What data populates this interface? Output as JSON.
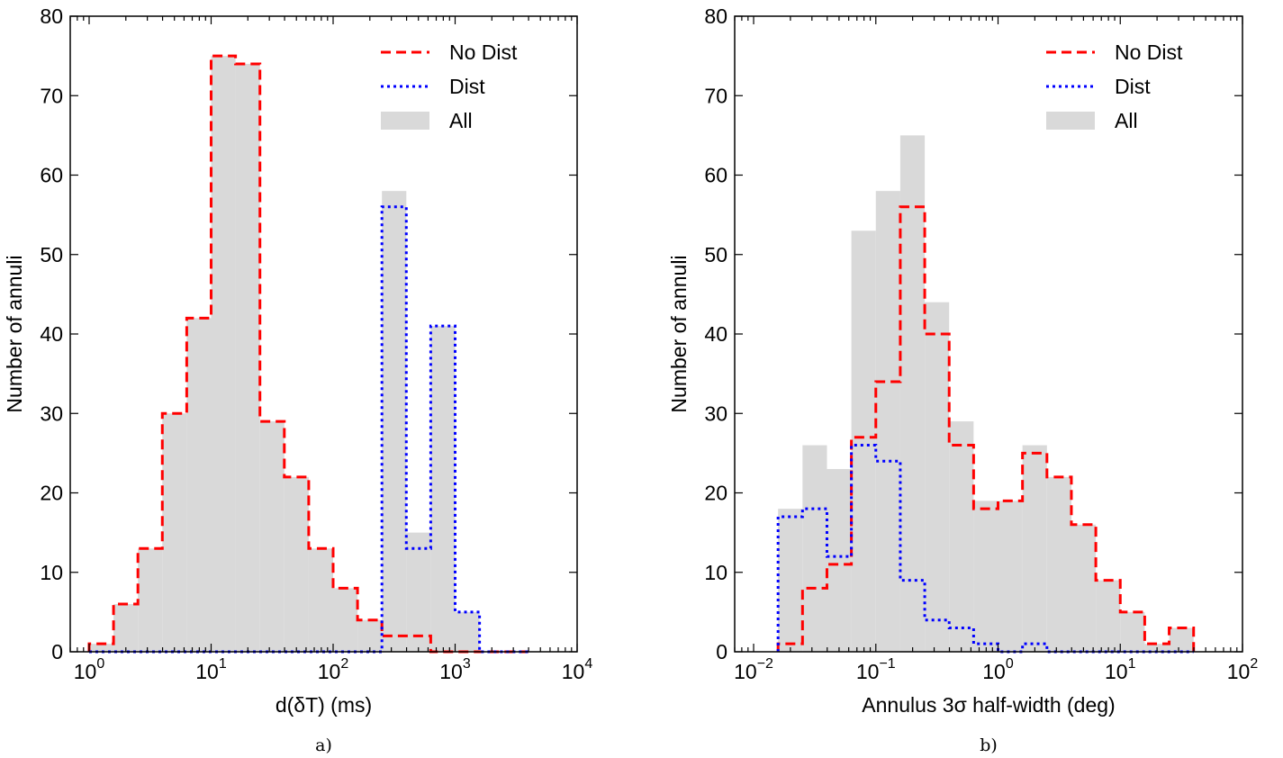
{
  "chart_data": [
    {
      "type": "bar",
      "histogram": true,
      "caption": "a)",
      "xlabel": "d(δT) (ms)",
      "ylabel": "Number of annuli",
      "xscale": "log",
      "xlim": [
        0.7,
        10000
      ],
      "ylim": [
        0,
        80
      ],
      "x_ticks": [
        1,
        10,
        100,
        1000,
        10000
      ],
      "x_tick_labels": [
        {
          "base": "10",
          "exp": "0"
        },
        {
          "base": "10",
          "exp": "1"
        },
        {
          "base": "10",
          "exp": "2"
        },
        {
          "base": "10",
          "exp": "3"
        },
        {
          "base": "10",
          "exp": "4"
        }
      ],
      "y_ticks": [
        0,
        10,
        20,
        30,
        40,
        50,
        60,
        70,
        80
      ],
      "y_tick_labels": [
        "0",
        "10",
        "20",
        "30",
        "40",
        "50",
        "60",
        "70",
        "80"
      ],
      "bin_edges": [
        1.0,
        1.585,
        2.512,
        3.981,
        6.31,
        10.0,
        15.85,
        25.12,
        39.81,
        63.1,
        100.0,
        158.5,
        251.2,
        398.1,
        631.0,
        1000.0,
        1585.0,
        2512.0,
        3981.0
      ],
      "grid": false,
      "legend_position": "top-right",
      "series": [
        {
          "name": "No Dist",
          "style": "dashed",
          "color": "#ff0000",
          "values": [
            1,
            6,
            13,
            30,
            42,
            75,
            74,
            29,
            22,
            13,
            8,
            4,
            2,
            2,
            0,
            0,
            0,
            0
          ]
        },
        {
          "name": "Dist",
          "style": "dotted",
          "color": "#0000ff",
          "values": [
            0,
            0,
            0,
            0,
            0,
            0,
            0,
            0,
            0,
            0,
            0,
            0,
            56,
            13,
            41,
            5,
            0,
            0
          ]
        },
        {
          "name": "All",
          "style": "filled",
          "color": "#d9d9d9",
          "values": [
            1,
            6,
            13,
            30,
            42,
            75,
            74,
            29,
            22,
            13,
            8,
            4,
            58,
            15,
            41,
            5,
            0,
            0
          ]
        }
      ]
    },
    {
      "type": "bar",
      "histogram": true,
      "caption": "b)",
      "xlabel": "Annulus 3σ half-width (deg)",
      "ylabel": "Number of annuli",
      "xscale": "log",
      "xlim": [
        0.007,
        100
      ],
      "ylim": [
        0,
        80
      ],
      "x_ticks": [
        0.01,
        0.1,
        1,
        10,
        100
      ],
      "x_tick_labels": [
        {
          "base": "10",
          "exp": "−2"
        },
        {
          "base": "10",
          "exp": "−1"
        },
        {
          "base": "10",
          "exp": "0"
        },
        {
          "base": "10",
          "exp": "1"
        },
        {
          "base": "10",
          "exp": "2"
        }
      ],
      "y_ticks": [
        0,
        10,
        20,
        30,
        40,
        50,
        60,
        70,
        80
      ],
      "y_tick_labels": [
        "0",
        "10",
        "20",
        "30",
        "40",
        "50",
        "60",
        "70",
        "80"
      ],
      "bin_edges": [
        0.01585,
        0.02512,
        0.03981,
        0.0631,
        0.1,
        0.1585,
        0.2512,
        0.3981,
        0.631,
        1.0,
        1.585,
        2.512,
        3.981,
        6.31,
        10.0,
        15.85,
        25.12,
        39.81
      ],
      "grid": false,
      "legend_position": "top-right",
      "series": [
        {
          "name": "No Dist",
          "style": "dashed",
          "color": "#ff0000",
          "values": [
            1,
            8,
            11,
            27,
            34,
            56,
            40,
            26,
            18,
            19,
            25,
            22,
            16,
            9,
            5,
            1,
            3
          ]
        },
        {
          "name": "Dist",
          "style": "dotted",
          "color": "#0000ff",
          "values": [
            17,
            18,
            12,
            26,
            24,
            9,
            4,
            3,
            1,
            0,
            1,
            0,
            0,
            0,
            0,
            0,
            0
          ]
        },
        {
          "name": "All",
          "style": "filled",
          "color": "#d9d9d9",
          "values": [
            18,
            26,
            23,
            53,
            58,
            65,
            44,
            29,
            19,
            19,
            26,
            22,
            16,
            9,
            5,
            1,
            3
          ]
        }
      ]
    }
  ]
}
